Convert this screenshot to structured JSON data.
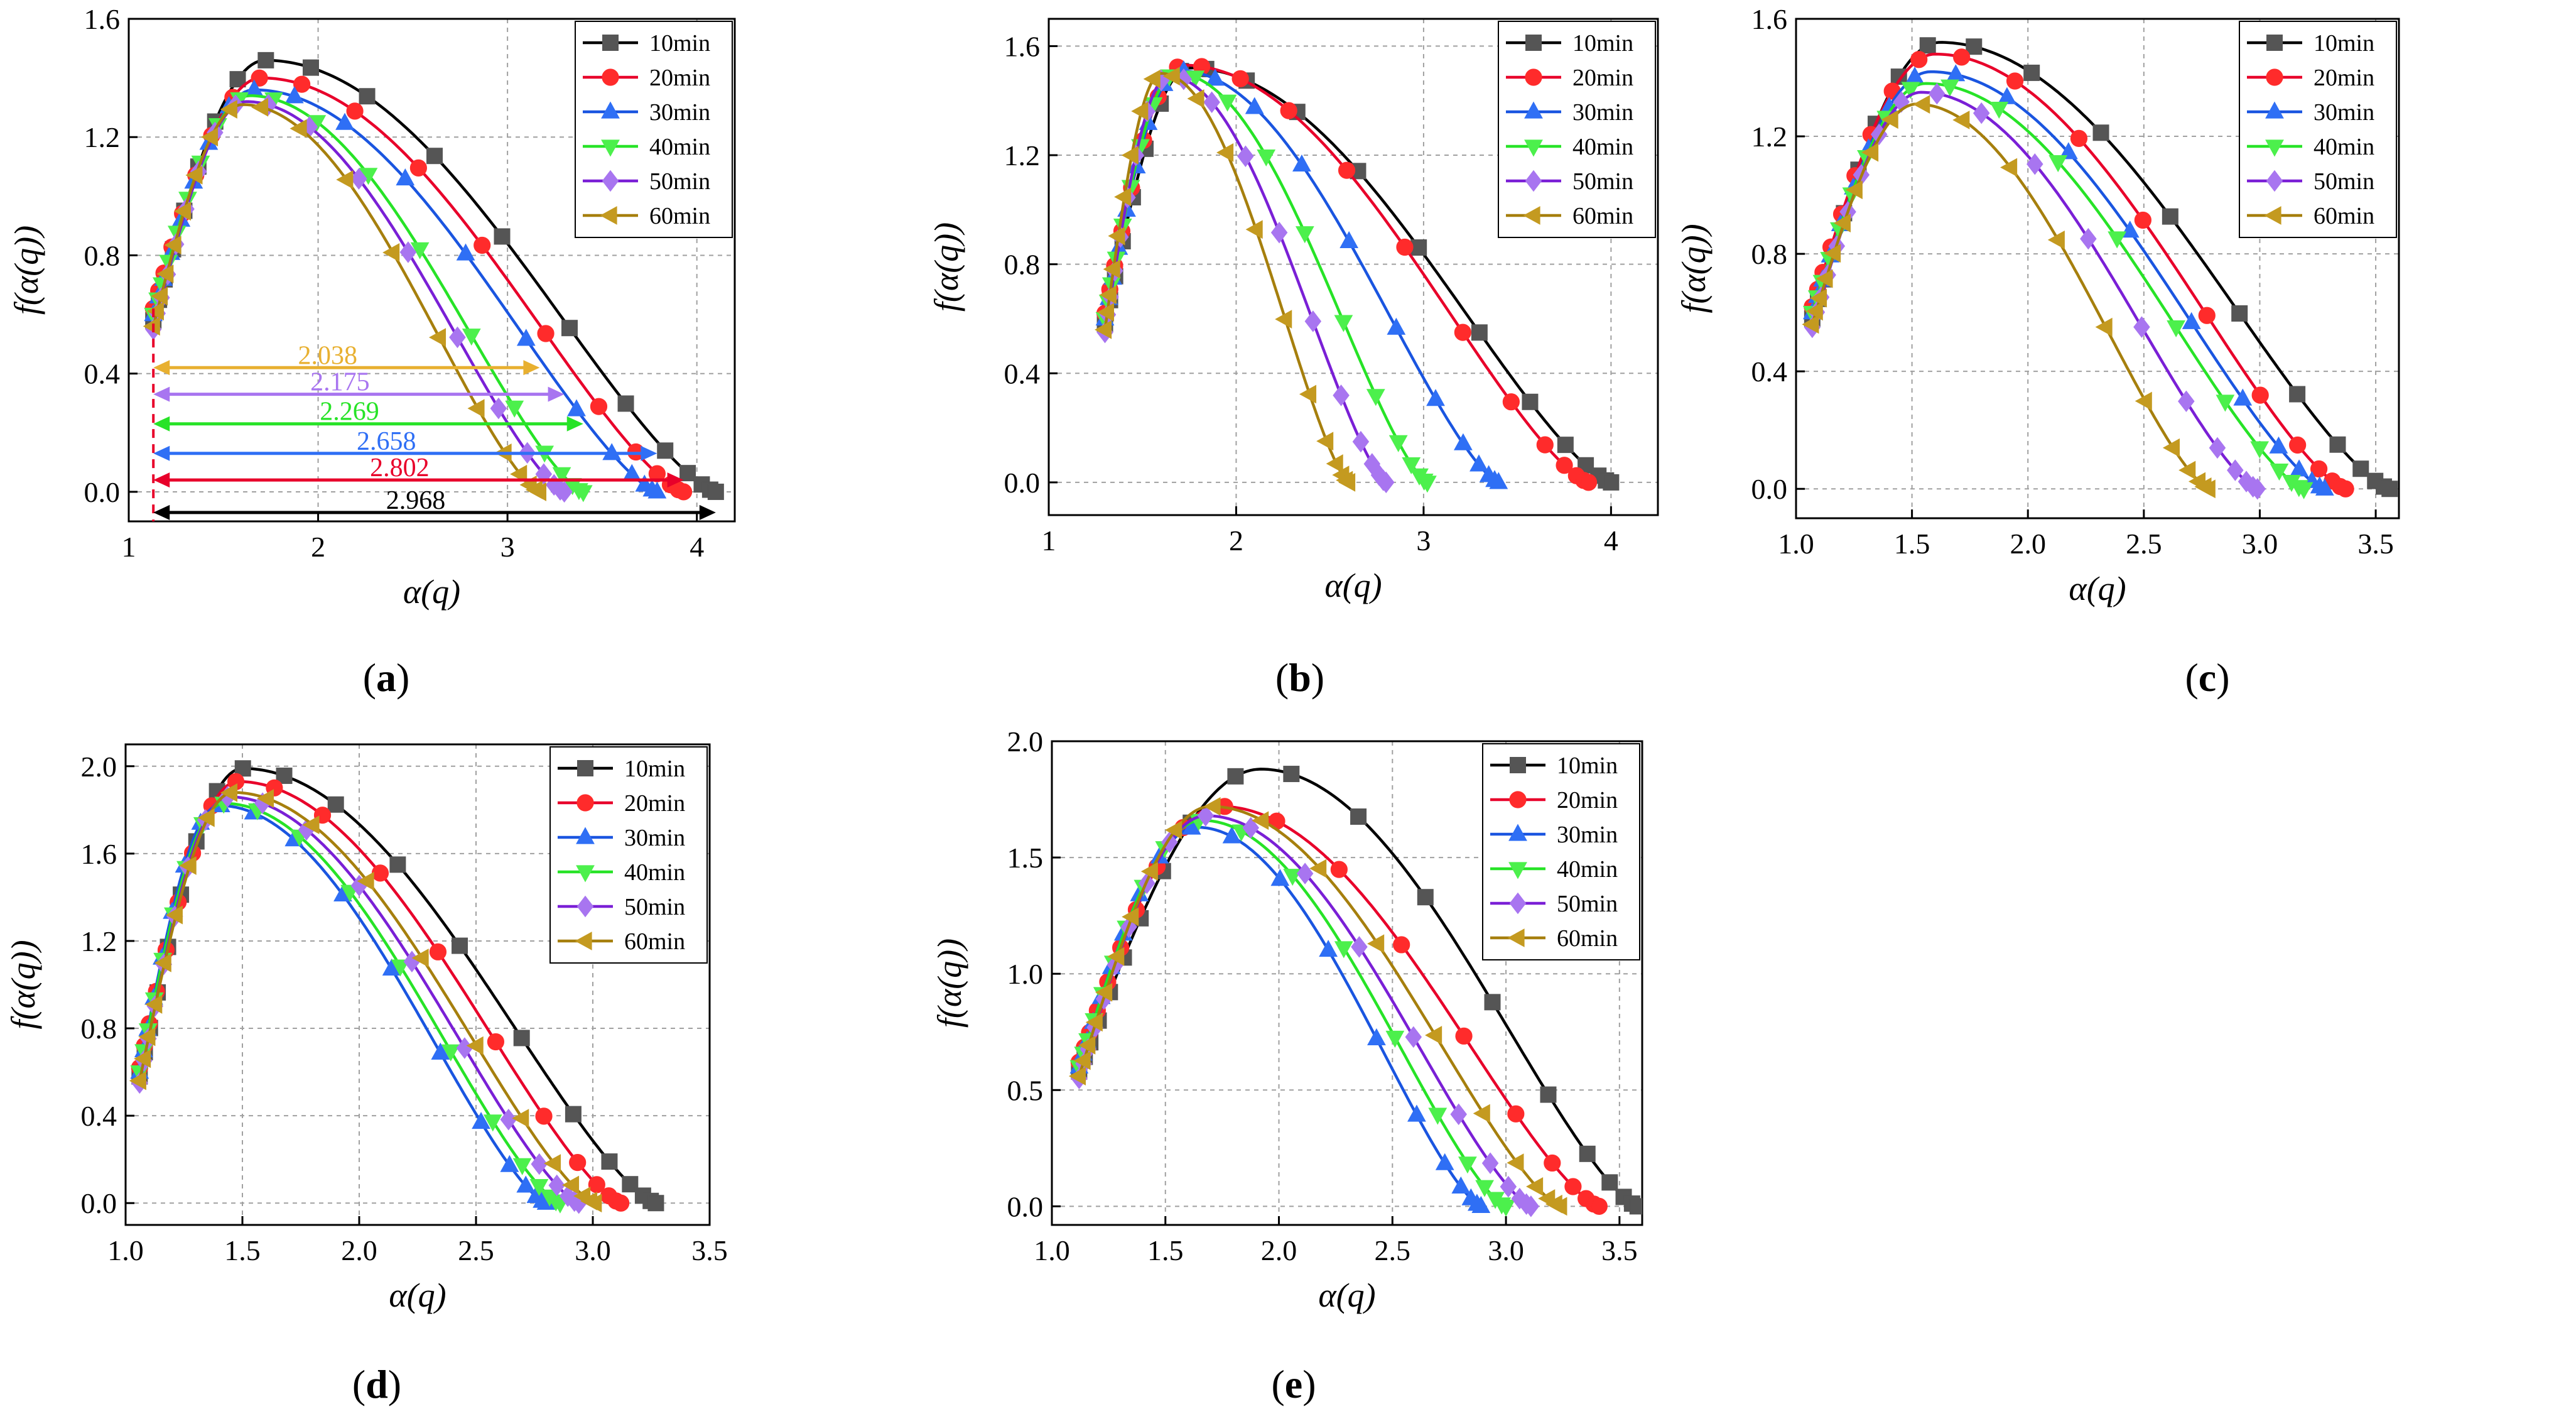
{
  "figure": {
    "panels": [
      {
        "label": "(a)",
        "letter": "a"
      },
      {
        "label": "(b)",
        "letter": "b"
      },
      {
        "label": "(c)",
        "letter": "c"
      },
      {
        "label": "(d)",
        "letter": "d"
      },
      {
        "label": "(e)",
        "letter": "e"
      }
    ]
  },
  "series_style": [
    {
      "name": "10min",
      "color": "#000000",
      "marker_color": "#555555",
      "marker": "square"
    },
    {
      "name": "20min",
      "color": "#e8002a",
      "marker_color": "#ff2b2b",
      "marker": "circle"
    },
    {
      "name": "30min",
      "color": "#1a55e0",
      "marker_color": "#2f6ff5",
      "marker": "triangle-up"
    },
    {
      "name": "40min",
      "color": "#27e327",
      "marker_color": "#4cf04c",
      "marker": "triangle-down"
    },
    {
      "name": "50min",
      "color": "#7a1fd6",
      "marker_color": "#a875f0",
      "marker": "diamond"
    },
    {
      "name": "60min",
      "color": "#a67f0d",
      "marker_color": "#c49a20",
      "marker": "triangle-left"
    }
  ],
  "chart_data": [
    {
      "id": "a",
      "type": "line",
      "title": "",
      "xlabel": "α(q)",
      "ylabel": "f(α(q))",
      "xlim": [
        1,
        4.2
      ],
      "ylim": [
        -0.1,
        1.6
      ],
      "xticks": [
        1,
        2,
        3,
        4
      ],
      "xtick_labels": [
        "1",
        "2",
        "3",
        "4"
      ],
      "yticks": [
        0,
        0.4,
        0.8,
        1.2,
        1.6
      ],
      "ytick_labels": [
        "0.0",
        "0.4",
        "0.8",
        "1.2",
        "1.6"
      ],
      "legend": "top-right",
      "grid": true,
      "series": [
        {
          "name": "10min",
          "amin": 1.13,
          "amax": 4.1,
          "peak_x": 1.72,
          "peak_y": 1.46
        },
        {
          "name": "20min",
          "amin": 1.13,
          "amax": 3.93,
          "peak_x": 1.7,
          "peak_y": 1.4
        },
        {
          "name": "30min",
          "amin": 1.13,
          "amax": 3.79,
          "peak_x": 1.66,
          "peak_y": 1.36
        },
        {
          "name": "40min",
          "amin": 1.13,
          "amax": 3.4,
          "peak_x": 1.64,
          "peak_y": 1.34
        },
        {
          "name": "50min",
          "amin": 1.13,
          "amax": 3.3,
          "peak_x": 1.62,
          "peak_y": 1.32
        },
        {
          "name": "60min",
          "amin": 1.13,
          "amax": 3.17,
          "peak_x": 1.6,
          "peak_y": 1.31
        }
      ],
      "reference_line_x": 1.13,
      "annotations": [
        {
          "text": "2.038",
          "value": 2.038,
          "y": 0.42,
          "x1": 1.13,
          "x2": 3.17,
          "color": "#e8b030"
        },
        {
          "text": "2.175",
          "value": 2.175,
          "y": 0.33,
          "x1": 1.13,
          "x2": 3.3,
          "color": "#a875f0"
        },
        {
          "text": "2.269",
          "value": 2.269,
          "y": 0.23,
          "x1": 1.13,
          "x2": 3.4,
          "color": "#27e327"
        },
        {
          "text": "2.658",
          "value": 2.658,
          "y": 0.13,
          "x1": 1.13,
          "x2": 3.79,
          "color": "#2f6ff5"
        },
        {
          "text": "2.802",
          "value": 2.802,
          "y": 0.04,
          "x1": 1.13,
          "x2": 3.93,
          "color": "#e8002a"
        },
        {
          "text": "2.968",
          "value": 2.968,
          "y": -0.07,
          "x1": 1.13,
          "x2": 4.1,
          "color": "#000000"
        }
      ]
    },
    {
      "id": "b",
      "type": "line",
      "title": "",
      "xlabel": "α(q)",
      "ylabel": "f(α(q))",
      "xlim": [
        1,
        4.25
      ],
      "ylim": [
        -0.12,
        1.7
      ],
      "xticks": [
        1,
        2,
        3,
        4
      ],
      "xtick_labels": [
        "1",
        "2",
        "3",
        "4"
      ],
      "yticks": [
        0,
        0.4,
        0.8,
        1.2,
        1.6
      ],
      "ytick_labels": [
        "0.0",
        "0.4",
        "0.8",
        "1.2",
        "1.6"
      ],
      "legend": "top-right",
      "grid": true,
      "series": [
        {
          "name": "10min",
          "amin": 1.3,
          "amax": 4.0,
          "peak_x": 1.75,
          "peak_y": 1.52
        },
        {
          "name": "20min",
          "amin": 1.3,
          "amax": 3.88,
          "peak_x": 1.72,
          "peak_y": 1.53
        },
        {
          "name": "30min",
          "amin": 1.3,
          "amax": 3.4,
          "peak_x": 1.7,
          "peak_y": 1.51
        },
        {
          "name": "40min",
          "amin": 1.3,
          "amax": 3.02,
          "peak_x": 1.68,
          "peak_y": 1.5
        },
        {
          "name": "50min",
          "amin": 1.3,
          "amax": 2.8,
          "peak_x": 1.64,
          "peak_y": 1.49
        },
        {
          "name": "60min",
          "amin": 1.3,
          "amax": 2.6,
          "peak_x": 1.6,
          "peak_y": 1.5
        }
      ]
    },
    {
      "id": "c",
      "type": "line",
      "title": "",
      "xlabel": "α(q)",
      "ylabel": "f(α(q))",
      "xlim": [
        1,
        3.6
      ],
      "ylim": [
        -0.1,
        1.6
      ],
      "xticks": [
        1.0,
        1.5,
        2.0,
        2.5,
        3.0,
        3.5
      ],
      "xtick_labels": [
        "1.0",
        "1.5",
        "2.0",
        "2.5",
        "3.0",
        "3.5"
      ],
      "yticks": [
        0,
        0.4,
        0.8,
        1.2,
        1.6
      ],
      "ytick_labels": [
        "0.0",
        "0.4",
        "0.8",
        "1.2",
        "1.6"
      ],
      "legend": "top-right",
      "grid": true,
      "series": [
        {
          "name": "10min",
          "amin": 1.07,
          "amax": 3.56,
          "peak_x": 1.62,
          "peak_y": 1.52
        },
        {
          "name": "20min",
          "amin": 1.07,
          "amax": 3.37,
          "peak_x": 1.6,
          "peak_y": 1.48
        },
        {
          "name": "30min",
          "amin": 1.07,
          "amax": 3.28,
          "peak_x": 1.58,
          "peak_y": 1.42
        },
        {
          "name": "40min",
          "amin": 1.07,
          "amax": 3.19,
          "peak_x": 1.56,
          "peak_y": 1.38
        },
        {
          "name": "50min",
          "amin": 1.07,
          "amax": 2.99,
          "peak_x": 1.54,
          "peak_y": 1.35
        },
        {
          "name": "60min",
          "amin": 1.07,
          "amax": 2.78,
          "peak_x": 1.52,
          "peak_y": 1.31
        }
      ]
    },
    {
      "id": "d",
      "type": "line",
      "title": "",
      "xlabel": "α(q)",
      "ylabel": "f(α(q))",
      "xlim": [
        1,
        3.5
      ],
      "ylim": [
        -0.1,
        2.1
      ],
      "xticks": [
        1.0,
        1.5,
        2.0,
        2.5,
        3.0,
        3.5
      ],
      "xtick_labels": [
        "1.0",
        "1.5",
        "2.0",
        "2.5",
        "3.0",
        "3.5"
      ],
      "yticks": [
        0,
        0.4,
        0.8,
        1.2,
        1.6,
        2.0
      ],
      "ytick_labels": [
        "0.0",
        "0.4",
        "0.8",
        "1.2",
        "1.6",
        "2.0"
      ],
      "legend": "top-right",
      "grid": true,
      "series": [
        {
          "name": "10min",
          "amin": 1.06,
          "amax": 3.27,
          "peak_x": 1.5,
          "peak_y": 1.99
        },
        {
          "name": "20min",
          "amin": 1.06,
          "amax": 3.12,
          "peak_x": 1.48,
          "peak_y": 1.93
        },
        {
          "name": "30min",
          "amin": 1.06,
          "amax": 2.8,
          "peak_x": 1.4,
          "peak_y": 1.82
        },
        {
          "name": "40min",
          "amin": 1.06,
          "amax": 2.86,
          "peak_x": 1.42,
          "peak_y": 1.83
        },
        {
          "name": "50min",
          "amin": 1.06,
          "amax": 2.94,
          "peak_x": 1.44,
          "peak_y": 1.86
        },
        {
          "name": "60min",
          "amin": 1.06,
          "amax": 3.01,
          "peak_x": 1.46,
          "peak_y": 1.88
        }
      ]
    },
    {
      "id": "e",
      "type": "line",
      "title": "",
      "xlabel": "α(q)",
      "ylabel": "f(α(q))",
      "xlim": [
        1,
        3.6
      ],
      "ylim": [
        -0.08,
        2.0
      ],
      "xticks": [
        1.0,
        1.5,
        2.0,
        2.5,
        3.0,
        3.5
      ],
      "xtick_labels": [
        "1.0",
        "1.5",
        "2.0",
        "2.5",
        "3.0",
        "3.5"
      ],
      "yticks": [
        0,
        0.5,
        1.0,
        1.5,
        2.0
      ],
      "ytick_labels": [
        "0.0",
        "0.5",
        "1.0",
        "1.5",
        "2.0"
      ],
      "legend": "top-right",
      "grid": true,
      "series": [
        {
          "name": "10min",
          "amin": 1.12,
          "amax": 3.58,
          "peak_x": 1.92,
          "peak_y": 1.88
        },
        {
          "name": "20min",
          "amin": 1.12,
          "amax": 3.41,
          "peak_x": 1.74,
          "peak_y": 1.72
        },
        {
          "name": "30min",
          "amin": 1.12,
          "amax": 2.89,
          "peak_x": 1.64,
          "peak_y": 1.63
        },
        {
          "name": "40min",
          "amin": 1.12,
          "amax": 3.0,
          "peak_x": 1.66,
          "peak_y": 1.66
        },
        {
          "name": "50min",
          "amin": 1.12,
          "amax": 3.11,
          "peak_x": 1.68,
          "peak_y": 1.68
        },
        {
          "name": "60min",
          "amin": 1.12,
          "amax": 3.24,
          "peak_x": 1.7,
          "peak_y": 1.72
        }
      ]
    }
  ]
}
